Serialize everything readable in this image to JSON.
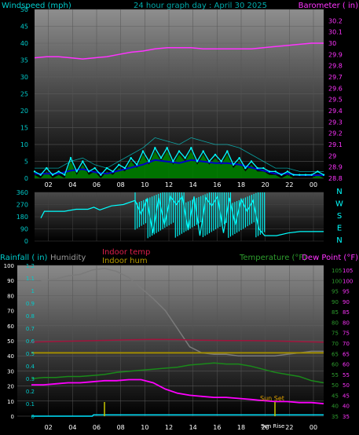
{
  "colors": {
    "wind": "#00ffff",
    "gust": "#0000c8",
    "wind_fill": "#008000",
    "barometer": "#ff33ff",
    "direction": "#00ffff",
    "rain": "#00e5ff",
    "humidity": "#7a7a7a",
    "indoor_temp": "#a0143c",
    "indoor_hum": "#a08c00",
    "temperature": "#1a8a1a",
    "dew_point": "#ff00ff",
    "sunrise_marker": "#c8c800",
    "title": "#00cccc",
    "axis_text": "#ffffff"
  },
  "chart_data": [
    {
      "type": "line",
      "panel": "wind-baro",
      "title": "24 hour graph day : April 30 2025",
      "ylabel": "Windspeed (mph)",
      "y2label": "Barometer ( in)",
      "ylim": [
        0,
        50
      ],
      "y2lim": [
        28.8,
        30.3
      ],
      "yticks": [
        0,
        5,
        10,
        15,
        20,
        25,
        30,
        35,
        40,
        45,
        50
      ],
      "y2ticks": [
        "28.8",
        "28.9",
        "29",
        "29.1",
        "29.2",
        "29.3",
        "29.4",
        "29.5",
        "29.6",
        "29.7",
        "29.8",
        "29.9",
        "30",
        "30.1",
        "30.2"
      ],
      "xticks": [
        "02",
        "04",
        "06",
        "08",
        "10",
        "12",
        "14",
        "16",
        "18",
        "20",
        "22",
        "00"
      ],
      "grid": true,
      "series": [
        {
          "key": "wind",
          "x": [
            0,
            0.5,
            1,
            1.5,
            2,
            2.5,
            3,
            3.5,
            4,
            4.5,
            5,
            5.5,
            6,
            6.5,
            7,
            7.5,
            8,
            8.5,
            9,
            9.5,
            10,
            10.5,
            11,
            11.5,
            12,
            12.5,
            13,
            13.5,
            14,
            14.5,
            15,
            15.5,
            16,
            16.5,
            17,
            17.5,
            18,
            18.5,
            19,
            19.5,
            20,
            20.5,
            21,
            21.5,
            22,
            22.5,
            23,
            23.5,
            24
          ],
          "values": [
            2,
            1,
            3,
            1,
            2,
            1,
            6,
            2,
            5,
            2,
            3,
            1,
            3,
            2,
            4,
            3,
            6,
            4,
            8,
            5,
            9,
            6,
            9,
            5,
            8,
            6,
            9,
            5,
            8,
            5,
            7,
            5,
            8,
            4,
            6,
            3,
            5,
            3,
            3,
            2,
            2,
            1,
            2,
            1,
            1,
            1,
            1,
            2,
            1
          ]
        },
        {
          "key": "gust",
          "x": [
            0,
            1,
            2,
            3,
            4,
            5,
            6,
            7,
            8,
            9,
            10,
            11,
            12,
            13,
            14,
            15,
            16,
            17,
            18,
            19,
            20,
            21,
            22,
            23,
            24
          ],
          "values": [
            3,
            3,
            3,
            5,
            6,
            4,
            3,
            5,
            7,
            9,
            12,
            11,
            10,
            12,
            11,
            10,
            10,
            9,
            7,
            5,
            3,
            3,
            2,
            2,
            2
          ]
        },
        {
          "key": "barometer",
          "x": [
            0,
            1,
            2,
            3,
            4,
            5,
            6,
            7,
            8,
            9,
            10,
            11,
            12,
            13,
            14,
            15,
            16,
            17,
            18,
            19,
            20,
            21,
            22,
            23,
            24
          ],
          "values": [
            29.87,
            29.88,
            29.88,
            29.87,
            29.86,
            29.87,
            29.88,
            29.9,
            29.92,
            29.93,
            29.95,
            29.96,
            29.96,
            29.96,
            29.95,
            29.95,
            29.95,
            29.95,
            29.95,
            29.96,
            29.97,
            29.98,
            29.99,
            30.0,
            30.0
          ]
        }
      ]
    },
    {
      "type": "line",
      "panel": "direction",
      "ylabel": "Direction",
      "ylim": [
        0,
        360
      ],
      "yticks": [
        0,
        90,
        180,
        270,
        360
      ],
      "compass": [
        "N",
        "W",
        "S",
        "E",
        "N"
      ],
      "grid": true,
      "series": [
        {
          "key": "direction",
          "x": [
            0,
            0.3,
            1,
            2,
            3,
            4,
            4.5,
            5,
            6,
            7,
            8,
            8.5,
            9,
            9.5,
            10,
            10.5,
            11,
            11.5,
            12,
            12.5,
            13,
            13.5,
            14,
            14.5,
            15,
            15.5,
            16,
            16.5,
            17,
            17.5,
            18,
            18.5,
            19,
            20,
            21,
            22,
            23,
            24
          ],
          "values": [
            170,
            220,
            220,
            220,
            235,
            235,
            250,
            230,
            260,
            270,
            300,
            200,
            310,
            60,
            320,
            120,
            330,
            270,
            330,
            80,
            330,
            40,
            320,
            260,
            330,
            60,
            320,
            120,
            310,
            220,
            300,
            90,
            40,
            40,
            60,
            70,
            70,
            70
          ]
        }
      ]
    },
    {
      "type": "line",
      "panel": "temp-hum-rain",
      "legend": [
        "Rainfall ( in)",
        "Humidity",
        "Indoor temp",
        "Indoor hum",
        "Temperature (°F)",
        "Dew Point (°F)"
      ],
      "ylabel": "Rainfall ( in)",
      "yticks_hum": [
        0,
        10,
        20,
        30,
        40,
        50,
        60,
        70,
        80,
        90,
        100
      ],
      "yticks_rain": [
        "0",
        "0.1",
        "0.2",
        "0.3",
        "0.4",
        "0.5",
        "0.6",
        "0.7",
        "0.8",
        "0.9",
        "1",
        "1.1",
        "1.2"
      ],
      "yticks_temp": [
        "35",
        "40",
        "45",
        "50",
        "55",
        "60",
        "65",
        "70",
        "75",
        "80",
        "85",
        "90",
        "95",
        "100",
        "105"
      ],
      "xticks": [
        "02",
        "04",
        "06",
        "08",
        "10",
        "12",
        "14",
        "16",
        "18",
        "20",
        "22",
        "00"
      ],
      "annotations": [
        "Sun Rise",
        "Sun Set"
      ],
      "grid": true,
      "series": [
        {
          "key": "humidity",
          "x": [
            0,
            1,
            2,
            3,
            4,
            5,
            6,
            7,
            8,
            9,
            10,
            11,
            12,
            13,
            14,
            15,
            16,
            17,
            18,
            19,
            20,
            21,
            22,
            23,
            24
          ],
          "values": [
            88,
            90,
            91,
            93,
            94,
            97,
            98,
            96,
            92,
            85,
            78,
            70,
            58,
            46,
            42,
            41,
            41,
            40,
            40,
            40,
            40,
            41,
            42,
            43,
            43
          ]
        },
        {
          "key": "indoor_temp",
          "x": [
            0,
            2,
            4,
            6,
            8,
            10,
            12,
            14,
            16,
            18,
            20,
            22,
            24
          ],
          "values": [
            70.5,
            70.8,
            71,
            71.3,
            71.6,
            71.8,
            71.7,
            71.4,
            71.2,
            71.2,
            71,
            70.7,
            70.5
          ]
        },
        {
          "key": "indoor_hum",
          "x": [
            0,
            2,
            4,
            6,
            8,
            10,
            12,
            14,
            16,
            18,
            20,
            22,
            24
          ],
          "values": [
            42,
            42,
            42,
            42,
            42,
            42,
            42,
            42,
            42,
            42,
            42,
            42,
            42
          ]
        },
        {
          "key": "temperature",
          "x": [
            0,
            1,
            2,
            3,
            4,
            5,
            6,
            7,
            8,
            9,
            10,
            11,
            12,
            13,
            14,
            15,
            16,
            17,
            18,
            19,
            20,
            21,
            22,
            23,
            24
          ],
          "values": [
            53,
            53.5,
            53.5,
            54,
            54,
            54.5,
            55,
            56,
            56.5,
            57,
            57.5,
            58,
            58.5,
            59.5,
            60,
            60.5,
            60,
            60,
            59,
            57.5,
            56,
            55,
            54,
            52,
            51
          ]
        },
        {
          "key": "dew_point",
          "x": [
            0,
            1,
            2,
            3,
            4,
            5,
            6,
            7,
            8,
            9,
            10,
            11,
            12,
            13,
            14,
            15,
            16,
            17,
            18,
            19,
            20,
            21,
            22,
            23,
            24
          ],
          "values": [
            50,
            50,
            50.5,
            51,
            51,
            51.5,
            52,
            52,
            52.5,
            52.5,
            51,
            48,
            46,
            45,
            44.5,
            44,
            44,
            43.5,
            43,
            42.5,
            42,
            42,
            41.5,
            41.5,
            41
          ]
        },
        {
          "key": "rain",
          "x": [
            0,
            5,
            5.1,
            24
          ],
          "values": [
            0,
            0,
            0.01,
            0.01
          ]
        }
      ]
    }
  ],
  "labels": {
    "wind_left": "Windspeed (mph)",
    "title": "24 hour graph day : April 30 2025",
    "baro_right": "Barometer ( in)",
    "rain_left": "Rainfall ( in)",
    "humidity": "Humidity",
    "indoor_temp": "Indoor temp",
    "indoor_hum": "Indoor hum",
    "temperature": "Temperature (°F)",
    "dew_point": "Dew Point (°F)",
    "sunrise": "Sun Rise",
    "sunset": "Sun Set"
  }
}
